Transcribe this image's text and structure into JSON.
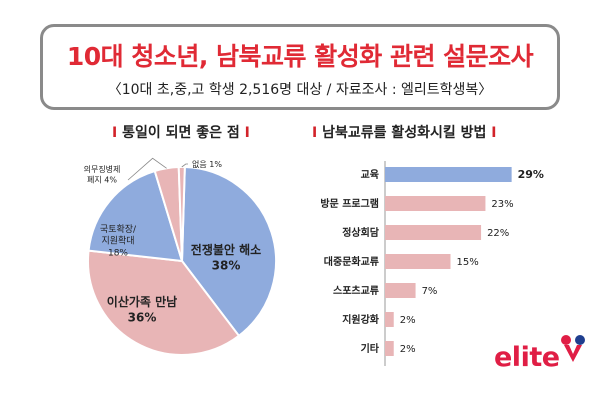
{
  "header": {
    "title": "10대 청소년, 남북교류 활성화 관련 설문조사",
    "subtitle": "〈10대 초,중,고 학생 2,516명 대상 / 자료조사 : 엘리트학생복〉"
  },
  "colors": {
    "title_red": "#e02a35",
    "pie_blue": "#8fabdd",
    "pie_pink": "#e8b5b6",
    "bar_blue": "#8fabdd",
    "bar_pink": "#e8b5b6",
    "logo_red": "#e01e45"
  },
  "logo": {
    "text": "elite"
  },
  "chart_data": [
    {
      "type": "pie",
      "title": "통일이 되면 좋은 점",
      "unit": "%",
      "slices": [
        {
          "label": "전쟁불안 해소",
          "value": 38
        },
        {
          "label": "이산가족 만남",
          "value": 36
        },
        {
          "label": "국토확장/ 지원확대",
          "value": 18
        },
        {
          "label": "의무징병제 폐지",
          "value": 4
        },
        {
          "label": "없음",
          "value": 1
        }
      ]
    },
    {
      "type": "bar",
      "orientation": "horizontal",
      "title": "남북교류를 활성화시킬 방법",
      "unit": "%",
      "categories": [
        "교육",
        "방문 프로그램",
        "정상회담",
        "대중문화교류",
        "스포츠교류",
        "지원강화",
        "기타"
      ],
      "values": [
        29,
        23,
        22,
        15,
        7,
        2,
        2
      ],
      "xlim": [
        0,
        30
      ]
    }
  ]
}
